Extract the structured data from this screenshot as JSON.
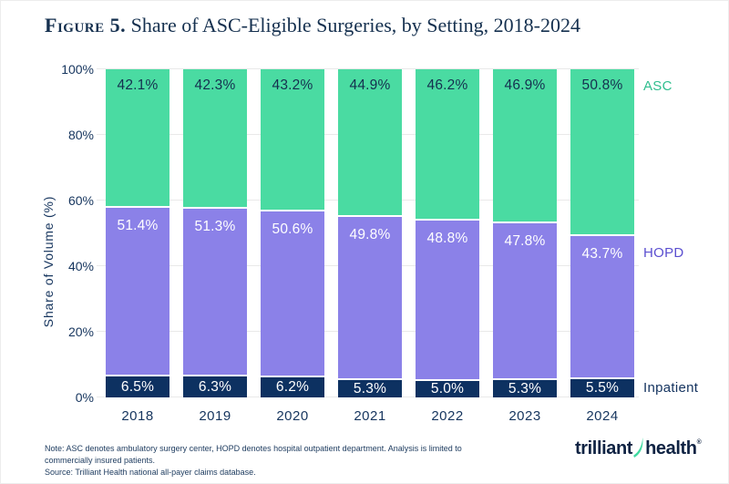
{
  "title": {
    "prefix": "Figure 5.",
    "text": " Share of ASC-Eligible Surgeries, by Setting, 2018-2024"
  },
  "colors": {
    "asc_bar": "#4adba2",
    "hopd_bar": "#8b81e8",
    "inpatient_bar": "#0d3161",
    "navy_text": "#16355e",
    "white_text": "#ffffff",
    "legend_asc": "#2fbe8e",
    "legend_hopd": "#5b4fd0",
    "legend_inpatient": "#14335f",
    "gridline": "#e9e9e9",
    "logo_green": "#41d9a1"
  },
  "chart_data": {
    "type": "bar",
    "stacked": true,
    "title": "Share of ASC-Eligible Surgeries, by Setting, 2018-2024",
    "xlabel": "",
    "ylabel": "Share of Volume (%)",
    "ylim": [
      0,
      100
    ],
    "grid": true,
    "legend_position": "right",
    "categories": [
      "2018",
      "2019",
      "2020",
      "2021",
      "2022",
      "2023",
      "2024"
    ],
    "series": [
      {
        "name": "Inpatient",
        "color": "#0d3161",
        "label_color": "#ffffff",
        "label_position": "center",
        "values": [
          6.5,
          6.3,
          6.2,
          5.3,
          5.0,
          5.3,
          5.5
        ]
      },
      {
        "name": "HOPD",
        "color": "#8b81e8",
        "label_color": "#ffffff",
        "label_position": "top",
        "values": [
          51.4,
          51.3,
          50.6,
          49.8,
          48.8,
          47.8,
          43.7
        ]
      },
      {
        "name": "ASC",
        "color": "#4adba2",
        "label_color": "#15304f",
        "label_position": "top",
        "values": [
          42.1,
          42.3,
          43.2,
          44.9,
          46.2,
          46.9,
          50.8
        ]
      }
    ],
    "yticks": [
      {
        "v": 100,
        "label": "100%"
      },
      {
        "v": 80,
        "label": "80%"
      },
      {
        "v": 60,
        "label": "60%"
      },
      {
        "v": 40,
        "label": "40%"
      },
      {
        "v": 20,
        "label": "20%"
      },
      {
        "v": 0,
        "label": "0%"
      }
    ],
    "legend": [
      {
        "label": "ASC",
        "color": "#2fbe8e"
      },
      {
        "label": "HOPD",
        "color": "#5b4fd0"
      },
      {
        "label": "Inpatient",
        "color": "#14335f"
      }
    ]
  },
  "footer": {
    "note_line1": "Note: ASC denotes ambulatory surgery center, HOPD denotes hospital outpatient department. Analysis is limited to",
    "note_line2": "commercially insured patients.",
    "source": "Source: Trilliant Health national all-payer claims database.",
    "logo": {
      "part1": "trilliant",
      "part2": "health",
      "reg": "®"
    }
  }
}
